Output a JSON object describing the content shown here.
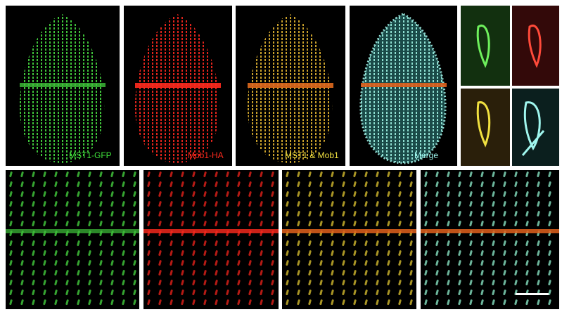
{
  "panels": [
    {
      "label": "MST1-GFP"
    },
    {
      "label": "Mob1-HA"
    },
    {
      "label": "MST1 & Mob1"
    },
    {
      "label": "Merge"
    }
  ]
}
